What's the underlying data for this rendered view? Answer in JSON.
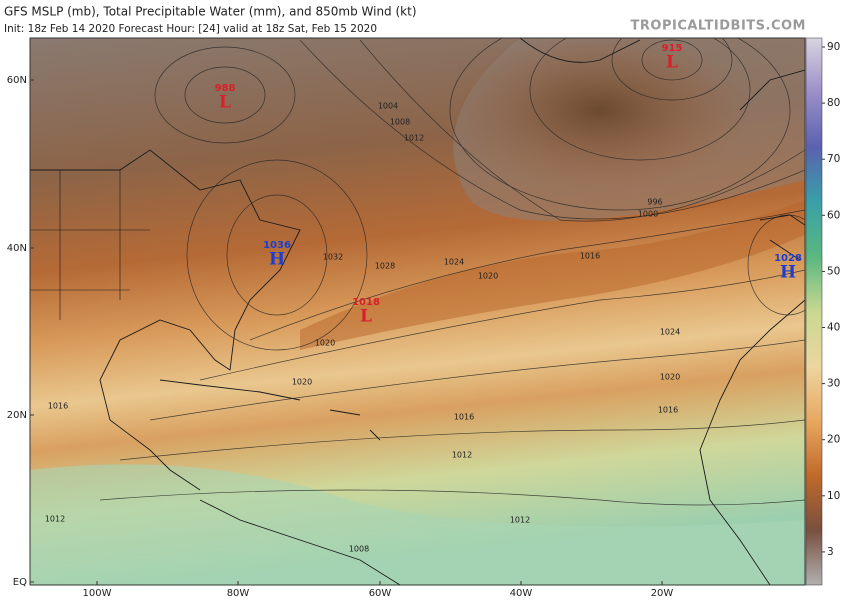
{
  "header": {
    "title": "GFS MSLP (mb), Total Precipitable Water (mm), and 850mb Wind (kt)",
    "subtitle": "Init: 18z Feb 14 2020   Forecast Hour: [24]   valid at 18z Sat, Feb 15 2020",
    "site": "TROPICALTIDBITS.COM"
  },
  "map": {
    "lat_labels": [
      "60N",
      "40N",
      "20N",
      "EQ"
    ],
    "lon_labels": [
      "100W",
      "80W",
      "60W",
      "40W",
      "20W"
    ],
    "centers": [
      {
        "value": "988",
        "symbol": "L"
      },
      {
        "value": "915",
        "symbol": "L"
      },
      {
        "value": "1036",
        "symbol": "H"
      },
      {
        "value": "1018",
        "symbol": "L"
      },
      {
        "value": "1028",
        "symbol": "H"
      }
    ],
    "isobar_labels": [
      "1004",
      "1008",
      "1012",
      "1016",
      "1020",
      "1024",
      "1028",
      "1032",
      "1020",
      "1016",
      "1012",
      "1008",
      "1012",
      "1016",
      "1020",
      "1024",
      "996",
      "1000",
      "1020",
      "1016",
      "1012"
    ]
  },
  "colorbar": {
    "ticks": [
      90,
      80,
      70,
      60,
      50,
      40,
      30,
      20,
      10,
      3
    ]
  }
}
